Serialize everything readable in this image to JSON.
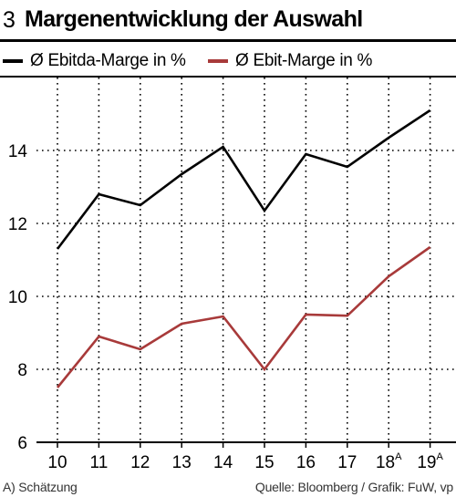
{
  "header": {
    "number": "3",
    "title": "Margenentwicklung der Auswahl"
  },
  "footer": {
    "note": "A) Schätzung",
    "source": "Quelle: Bloomberg / Grafik: FuW, vp"
  },
  "colors": {
    "ebitda": "#000000",
    "ebit": "#a83a3a"
  },
  "chart_data": {
    "type": "line",
    "x": [
      "10",
      "11",
      "12",
      "13",
      "14",
      "15",
      "16",
      "17",
      "18",
      "19"
    ],
    "x_superscripts": [
      "",
      "",
      "",
      "",
      "",
      "",
      "",
      "",
      "A",
      "A"
    ],
    "series": [
      {
        "name": "Ø Ebitda-Marge in %",
        "values": [
          11.3,
          12.8,
          12.5,
          13.35,
          14.1,
          12.35,
          13.9,
          13.55,
          14.35,
          15.1
        ]
      },
      {
        "name": "Ø Ebit-Marge in %",
        "values": [
          7.5,
          8.9,
          8.55,
          9.25,
          9.45,
          8.0,
          9.5,
          9.47,
          10.55,
          11.35
        ]
      }
    ],
    "yticks": [
      6,
      8,
      10,
      12,
      14
    ],
    "ylim": [
      6,
      16
    ],
    "grid": true,
    "legend": "top"
  }
}
